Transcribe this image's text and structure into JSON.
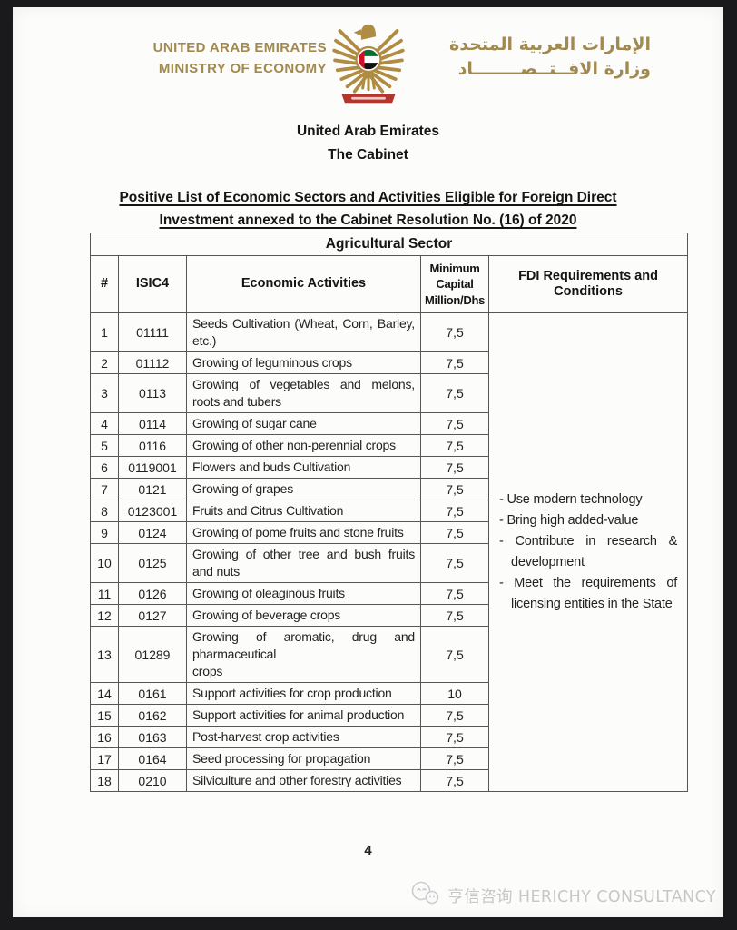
{
  "header": {
    "ministry_en_line1": "UNITED ARAB EMIRATES",
    "ministry_en_line2": "MINISTRY OF ECONOMY",
    "ministry_ar_line1": "الإمارات العربية المتحدة",
    "ministry_ar_line2": "وزارة الاقــتــصــــــــاد",
    "gold_color": "#a1894f"
  },
  "title": {
    "country": "United Arab Emirates",
    "body": "The Cabinet",
    "heading_line1": "Positive List of Economic Sectors and Activities Eligible for Foreign Direct",
    "heading_line2": "Investment annexed to the Cabinet Resolution No. (16) of 2020"
  },
  "table": {
    "sector_title": "Agricultural Sector",
    "columns": [
      "#",
      "ISIC4",
      "Economic Activities",
      "Minimum Capital Million/Dhs",
      "FDI Requirements and Conditions"
    ],
    "rows": [
      {
        "num": "1",
        "isic4": "01111",
        "activity": "Seeds Cultivation (Wheat, Corn, Barley, etc.)",
        "capital": "7,5"
      },
      {
        "num": "2",
        "isic4": "01112",
        "activity": "Growing of leguminous crops",
        "capital": "7,5"
      },
      {
        "num": "3",
        "isic4": "0113",
        "activity": "Growing of vegetables and melons, roots and tubers",
        "capital": "7,5"
      },
      {
        "num": "4",
        "isic4": "0114",
        "activity": "Growing of sugar cane",
        "capital": "7,5"
      },
      {
        "num": "5",
        "isic4": "0116",
        "activity": "Growing of other non-perennial crops",
        "capital": "7,5"
      },
      {
        "num": "6",
        "isic4": "0119001",
        "activity": "Flowers and buds Cultivation",
        "capital": "7,5"
      },
      {
        "num": "7",
        "isic4": "0121",
        "activity": "Growing of grapes",
        "capital": "7,5"
      },
      {
        "num": "8",
        "isic4": "0123001",
        "activity": "Fruits and Citrus Cultivation",
        "capital": "7,5"
      },
      {
        "num": "9",
        "isic4": "0124",
        "activity": "Growing of pome fruits and stone fruits",
        "capital": "7,5"
      },
      {
        "num": "10",
        "isic4": "0125",
        "activity": "Growing of other tree and bush fruits and nuts",
        "capital": "7,5"
      },
      {
        "num": "11",
        "isic4": "0126",
        "activity": "Growing of oleaginous fruits",
        "capital": "7,5"
      },
      {
        "num": "12",
        "isic4": "0127",
        "activity": "Growing of beverage crops",
        "capital": "7,5"
      },
      {
        "num": "13",
        "isic4": "01289",
        "activity": "Growing of aromatic, drug and pharmaceutical\ncrops",
        "capital": "7,5"
      },
      {
        "num": "14",
        "isic4": "0161",
        "activity": "Support activities for crop production",
        "capital": "10"
      },
      {
        "num": "15",
        "isic4": "0162",
        "activity": "Support activities for animal production",
        "capital": "7,5"
      },
      {
        "num": "16",
        "isic4": "0163",
        "activity": "Post-harvest crop activities",
        "capital": "7,5"
      },
      {
        "num": "17",
        "isic4": "0164",
        "activity": "Seed processing for propagation",
        "capital": "7,5"
      },
      {
        "num": "18",
        "isic4": "0210",
        "activity": "Silviculture and other forestry activities",
        "capital": "7,5"
      }
    ],
    "fdi_requirements": [
      "Use modern technology",
      "Bring high added-value",
      "Contribute in research & development",
      "Meet the requirements of licensing entities in the State"
    ]
  },
  "footer": {
    "page_number": "4",
    "watermark_text": "亨信咨询 HERICHY CONSULTANCY"
  }
}
